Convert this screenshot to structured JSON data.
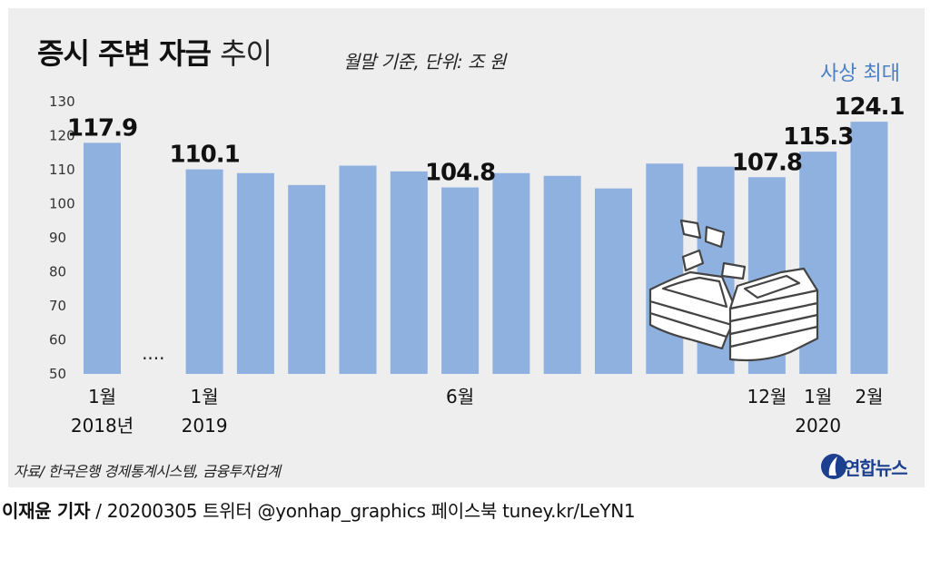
{
  "title": {
    "bold": "증시 주변 자금",
    "light": "추이"
  },
  "subtitle": "월말 기준, 단위: 조 원",
  "record_label": "사상 최대",
  "source": "자료/ 한국은행 경제통계시스템, 금융투자업계",
  "logo_text": "연합뉴스",
  "footer": {
    "reporter": "이재윤 기자",
    "rest": " / 20200305   트위터 @yonhap_graphics  페이스북 tuney.kr/LeYN1"
  },
  "gap_marker": "····",
  "colors": {
    "bar": "#8fb1e0",
    "panel": "#eeeeee",
    "accent": "#4a7fc4",
    "logo": "#1d3f8f"
  },
  "icon": "money-stack-icon",
  "chart_data": {
    "type": "bar",
    "y_ticks": [
      130,
      120,
      110,
      100,
      90,
      80,
      70,
      60,
      50
    ],
    "ylim": [
      50,
      130
    ],
    "values": [
      117.9,
      null,
      110.1,
      109,
      105.5,
      111.2,
      109.5,
      104.8,
      109,
      108.2,
      104.5,
      111.8,
      110.9,
      107.8,
      115.3,
      124.1
    ],
    "value_labels": [
      "117.9",
      "",
      "110.1",
      "",
      "",
      "",
      "",
      "104.8",
      "",
      "",
      "",
      "",
      "",
      "107.8",
      "115.3",
      "124.1"
    ],
    "x_labels": [
      [
        "1월",
        "2018년"
      ],
      [
        "",
        ""
      ],
      [
        "1월",
        "2019"
      ],
      [
        "",
        ""
      ],
      [
        "",
        ""
      ],
      [
        "",
        ""
      ],
      [
        "",
        ""
      ],
      [
        "6월",
        ""
      ],
      [
        "",
        ""
      ],
      [
        "",
        ""
      ],
      [
        "",
        ""
      ],
      [
        "",
        ""
      ],
      [
        "",
        ""
      ],
      [
        "12월",
        ""
      ],
      [
        "1월",
        "2020"
      ],
      [
        "2월",
        ""
      ]
    ]
  }
}
